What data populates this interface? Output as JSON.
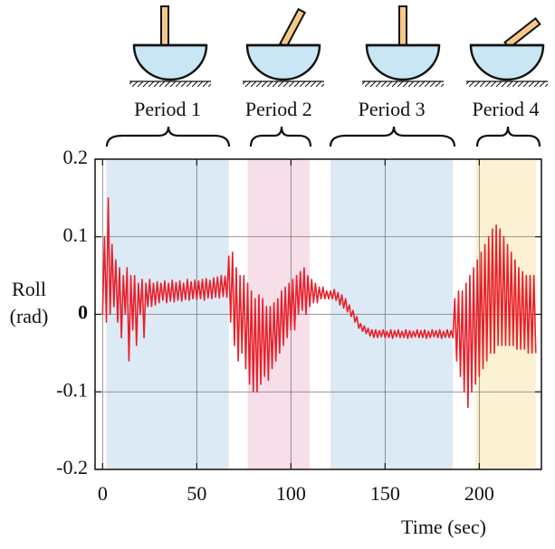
{
  "chart_data": {
    "type": "line",
    "x_label": "Time (sec)",
    "y_label_lines": [
      "Roll",
      "(rad)"
    ],
    "xlim": [
      -4,
      233
    ],
    "ylim": [
      -0.2,
      0.2
    ],
    "xticks": [
      0,
      50,
      100,
      150,
      200
    ],
    "yticks": [
      0.2,
      0.1,
      0,
      -0.1,
      -0.2
    ],
    "grid": true,
    "periods": [
      {
        "label": "Period 1",
        "start": 2,
        "end": 67,
        "color": "#dceaf6"
      },
      {
        "label": "Period 2",
        "start": 77,
        "end": 110,
        "color": "#f7dfea"
      },
      {
        "label": "Period 3",
        "start": 121,
        "end": 186,
        "color": "#dceaf6"
      },
      {
        "label": "Period 4",
        "start": 198,
        "end": 230,
        "color": "#fcf1d3"
      }
    ],
    "x": [
      0,
      1,
      2,
      3,
      4,
      5,
      6,
      7,
      8,
      9,
      10,
      11,
      12,
      13,
      14,
      15,
      16,
      17,
      18,
      19,
      20,
      21,
      22,
      23,
      24,
      25,
      26,
      27,
      28,
      29,
      30,
      31,
      32,
      33,
      34,
      35,
      36,
      37,
      38,
      39,
      40,
      41,
      42,
      43,
      44,
      45,
      46,
      47,
      48,
      49,
      50,
      51,
      52,
      53,
      54,
      55,
      56,
      57,
      58,
      59,
      60,
      61,
      62,
      63,
      64,
      65,
      66,
      67,
      68,
      69,
      70,
      71,
      72,
      73,
      74,
      75,
      76,
      77,
      78,
      79,
      80,
      81,
      82,
      83,
      84,
      85,
      86,
      87,
      88,
      89,
      90,
      91,
      92,
      93,
      94,
      95,
      96,
      97,
      98,
      99,
      100,
      101,
      102,
      103,
      104,
      105,
      106,
      107,
      108,
      109,
      110,
      111,
      112,
      113,
      114,
      115,
      116,
      117,
      118,
      119,
      120,
      121,
      122,
      123,
      124,
      125,
      126,
      127,
      128,
      129,
      130,
      131,
      132,
      133,
      134,
      135,
      136,
      137,
      138,
      139,
      140,
      141,
      142,
      143,
      144,
      145,
      146,
      147,
      148,
      149,
      150,
      151,
      152,
      153,
      154,
      155,
      156,
      157,
      158,
      159,
      160,
      161,
      162,
      163,
      164,
      165,
      166,
      167,
      168,
      169,
      170,
      171,
      172,
      173,
      174,
      175,
      176,
      177,
      178,
      179,
      180,
      181,
      182,
      183,
      184,
      185,
      186,
      187,
      188,
      189,
      190,
      191,
      192,
      193,
      194,
      195,
      196,
      197,
      198,
      199,
      200,
      201,
      202,
      203,
      204,
      205,
      206,
      207,
      208,
      209,
      210,
      211,
      212,
      213,
      214,
      215,
      216,
      217,
      218,
      219,
      220,
      221,
      222,
      223,
      224,
      225,
      226,
      227,
      228,
      229,
      230
    ],
    "series": [
      {
        "color": "#e8202a",
        "values": [
          0,
          0.1,
          -0.01,
          0.15,
          0,
          0.09,
          0.01,
          0.07,
          -0.01,
          0.06,
          -0.03,
          0.05,
          0,
          0.06,
          -0.06,
          0.05,
          -0.02,
          0.05,
          -0.04,
          0.04,
          0,
          0.045,
          -0.03,
          0.04,
          0.01,
          0.045,
          0.01,
          0.04,
          0.012,
          0.042,
          0.015,
          0.04,
          0.018,
          0.043,
          0.015,
          0.04,
          0.017,
          0.044,
          0.016,
          0.041,
          0.018,
          0.043,
          0.017,
          0.04,
          0.019,
          0.045,
          0.018,
          0.042,
          0.02,
          0.044,
          0.019,
          0.043,
          0.02,
          0.045,
          0.018,
          0.046,
          0.021,
          0.044,
          0.02,
          0.047,
          0.022,
          0.048,
          0.021,
          0.05,
          0.023,
          0.049,
          0.022,
          0.075,
          -0.01,
          0.08,
          -0.04,
          0.06,
          -0.06,
          0.05,
          -0.05,
          0.05,
          -0.07,
          0.04,
          -0.09,
          0.03,
          -0.1,
          0.02,
          -0.1,
          0.025,
          -0.09,
          0.02,
          -0.08,
          0.01,
          -0.085,
          0.01,
          -0.07,
          0.015,
          -0.06,
          0.02,
          -0.05,
          0.03,
          -0.04,
          0.035,
          -0.03,
          0.04,
          -0.02,
          0.045,
          -0.02,
          0.05,
          0,
          0.055,
          0.005,
          0.06,
          0,
          0.05,
          0.01,
          0.045,
          0.015,
          0.04,
          0.015,
          0.035,
          0.02,
          0.035,
          0.02,
          0.03,
          0.02,
          0.03,
          0.02,
          0.032,
          0.018,
          0.028,
          0.012,
          0.025,
          0.008,
          0.02,
          0.003,
          0.012,
          -0.003,
          0.005,
          -0.01,
          -0.003,
          -0.018,
          -0.012,
          -0.022,
          -0.015,
          -0.025,
          -0.018,
          -0.028,
          -0.02,
          -0.03,
          -0.02,
          -0.03,
          -0.021,
          -0.029,
          -0.02,
          -0.03,
          -0.022,
          -0.03,
          -0.02,
          -0.031,
          -0.021,
          -0.029,
          -0.02,
          -0.03,
          -0.022,
          -0.03,
          -0.02,
          -0.031,
          -0.021,
          -0.03,
          -0.022,
          -0.029,
          -0.02,
          -0.03,
          -0.021,
          -0.03,
          -0.02,
          -0.031,
          -0.022,
          -0.03,
          -0.02,
          -0.029,
          -0.021,
          -0.03,
          -0.02,
          -0.031,
          -0.022,
          -0.03,
          -0.02,
          -0.03,
          -0.021,
          -0.03,
          0.02,
          -0.06,
          0.03,
          -0.08,
          0.03,
          -0.1,
          0.04,
          -0.12,
          0.05,
          -0.1,
          0.06,
          -0.09,
          0.07,
          -0.08,
          0.08,
          -0.07,
          0.09,
          -0.06,
          0.1,
          -0.05,
          0.11,
          -0.05,
          0.115,
          -0.04,
          0.11,
          -0.04,
          0.1,
          -0.04,
          0.09,
          -0.04,
          0.08,
          -0.04,
          0.07,
          -0.045,
          0.06,
          -0.045,
          0.055,
          -0.045,
          0.05,
          -0.05,
          0.05,
          -0.05,
          0.05,
          -0.05
        ]
      }
    ]
  }
}
